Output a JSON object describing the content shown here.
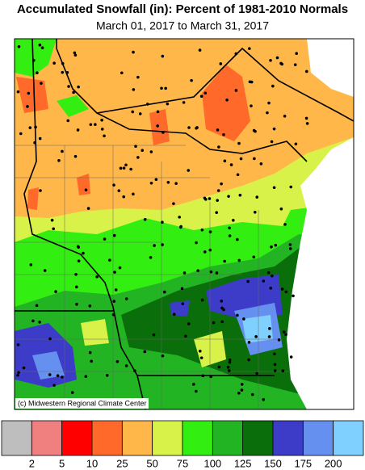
{
  "header": {
    "title": "Accumulated Snowfall (in): Percent of 1981-2010 Normals",
    "subtitle": "March 01, 2017 to March 31, 2017"
  },
  "map": {
    "credit": "(c) Midwestern Regional Climate Center"
  },
  "legend": {
    "colors": [
      "#bebebe",
      "#f08080",
      "#ff0000",
      "#ff6a2a",
      "#ffb74a",
      "#d8f24a",
      "#33ee11",
      "#22b422",
      "#0a6e0a",
      "#3c3cc8",
      "#6690f0",
      "#80d0ff"
    ],
    "labels": [
      2,
      5,
      10,
      25,
      50,
      75,
      100,
      125,
      150,
      175,
      200
    ]
  }
}
